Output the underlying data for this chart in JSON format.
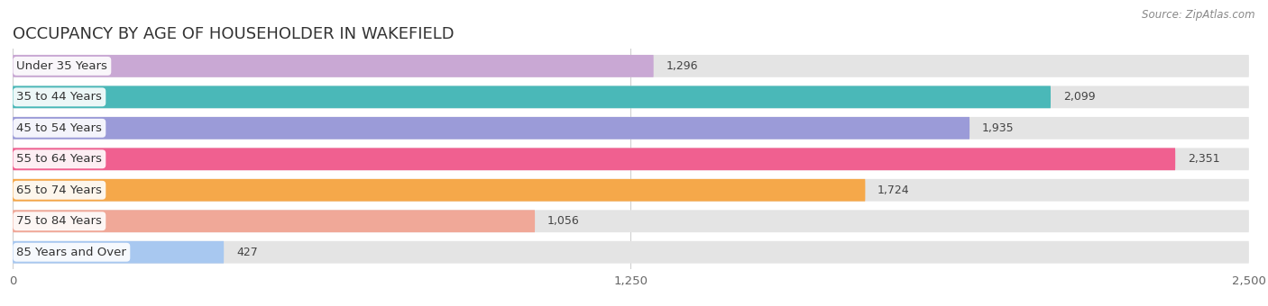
{
  "title": "OCCUPANCY BY AGE OF HOUSEHOLDER IN WAKEFIELD",
  "source": "Source: ZipAtlas.com",
  "categories": [
    "Under 35 Years",
    "35 to 44 Years",
    "45 to 54 Years",
    "55 to 64 Years",
    "65 to 74 Years",
    "75 to 84 Years",
    "85 Years and Over"
  ],
  "values": [
    1296,
    2099,
    1935,
    2351,
    1724,
    1056,
    427
  ],
  "bar_colors": [
    "#c9a8d4",
    "#4ab8b8",
    "#9b9bd8",
    "#f06090",
    "#f5a84a",
    "#f0a898",
    "#a8c8f0"
  ],
  "bar_bg_color": "#e4e4e4",
  "xmax": 2500,
  "xticks": [
    0,
    1250,
    2500
  ],
  "background_color": "#ffffff",
  "title_fontsize": 13,
  "label_fontsize": 9.5,
  "value_fontsize": 9,
  "source_fontsize": 8.5
}
